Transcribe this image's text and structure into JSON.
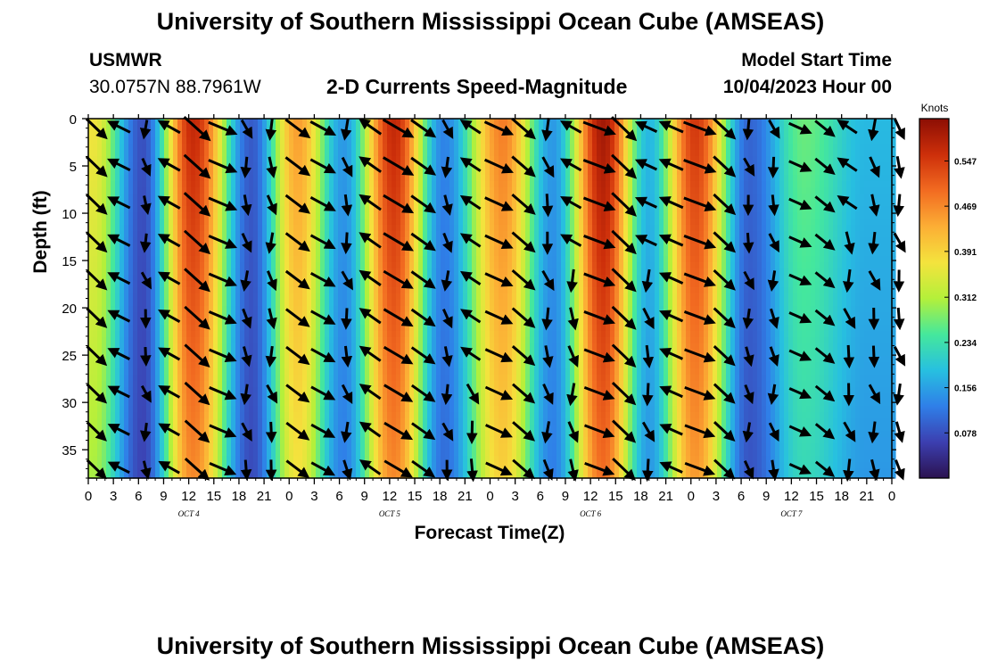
{
  "header": {
    "title": "University of Southern Mississippi Ocean Cube (AMSEAS)",
    "station": "USMWR",
    "coordinates": "30.0757N  88.7961W",
    "chart_title": "2-D Currents Speed-Magnitude",
    "model_start_label": "Model Start Time",
    "model_start_value": "10/04/2023 Hour 00"
  },
  "footer": {
    "title": "University of Southern Mississippi Ocean Cube (AMSEAS)"
  },
  "colors": {
    "arrow": "#000000",
    "frame": "#000000",
    "colormap": [
      "#2b1250",
      "#3c3fb0",
      "#2f7fe8",
      "#27c0e0",
      "#45e89c",
      "#b4f03a",
      "#f4e33d",
      "#fcae35",
      "#f26b21",
      "#cd2f0a",
      "#8c0e04"
    ]
  },
  "chart_data": {
    "type": "heatmap",
    "title": "2-D Currents Speed-Magnitude",
    "xlabel": "Forecast Time(Z)",
    "ylabel": "Depth (ft)",
    "x_ticks": [
      "0",
      "3",
      "6",
      "9",
      "12",
      "15",
      "18",
      "21",
      "0",
      "3",
      "6",
      "9",
      "12",
      "15",
      "18",
      "21",
      "0",
      "3",
      "6",
      "9",
      "12",
      "15",
      "18",
      "21",
      "0",
      "3",
      "6",
      "9",
      "12",
      "15",
      "18",
      "21",
      "0"
    ],
    "x_range_hours": [
      0,
      96
    ],
    "day_labels": [
      {
        "label": "OCT 4",
        "hour": 12
      },
      {
        "label": "OCT 5",
        "hour": 36
      },
      {
        "label": "OCT 6",
        "hour": 60
      },
      {
        "label": "OCT 7",
        "hour": 84
      }
    ],
    "y_ticks": [
      0,
      5,
      10,
      15,
      20,
      25,
      30,
      35
    ],
    "y_range_ft": [
      0,
      38
    ],
    "colorbar": {
      "label": "Knots",
      "ticks": [
        "0.547",
        "0.469",
        "0.391",
        "0.312",
        "0.234",
        "0.156",
        "0.078"
      ],
      "range": [
        0.0,
        0.62
      ]
    },
    "speed_peaks": [
      {
        "hour": 0.5,
        "speed": 0.37
      },
      {
        "hour": 12.5,
        "speed": 0.57
      },
      {
        "hour": 25,
        "speed": 0.45
      },
      {
        "hour": 36.5,
        "speed": 0.57
      },
      {
        "hour": 49.5,
        "speed": 0.48
      },
      {
        "hour": 61.5,
        "speed": 0.6
      },
      {
        "hour": 72.5,
        "speed": 0.55
      },
      {
        "hour": 85.5,
        "speed": 0.27
      }
    ],
    "speed_minima": [
      {
        "hour": 6.5,
        "speed": 0.08
      },
      {
        "hour": 19.5,
        "speed": 0.09
      },
      {
        "hour": 30.5,
        "speed": 0.15
      },
      {
        "hour": 42.5,
        "speed": 0.13
      },
      {
        "hour": 55.5,
        "speed": 0.15
      },
      {
        "hour": 67,
        "speed": 0.18
      },
      {
        "hour": 79,
        "speed": 0.1
      },
      {
        "hour": 93,
        "speed": 0.18
      }
    ],
    "vector_rows_ft": [
      0,
      4,
      8,
      12,
      16,
      20,
      24,
      28,
      32,
      36
    ],
    "vector_columns_hours": [
      0,
      3,
      6,
      9,
      12,
      15,
      18,
      21,
      24,
      27,
      30,
      33,
      36,
      39,
      42,
      45,
      48,
      51,
      54,
      57,
      60,
      63,
      66,
      69,
      72,
      75,
      78,
      81,
      84,
      87,
      90,
      93,
      96
    ]
  }
}
